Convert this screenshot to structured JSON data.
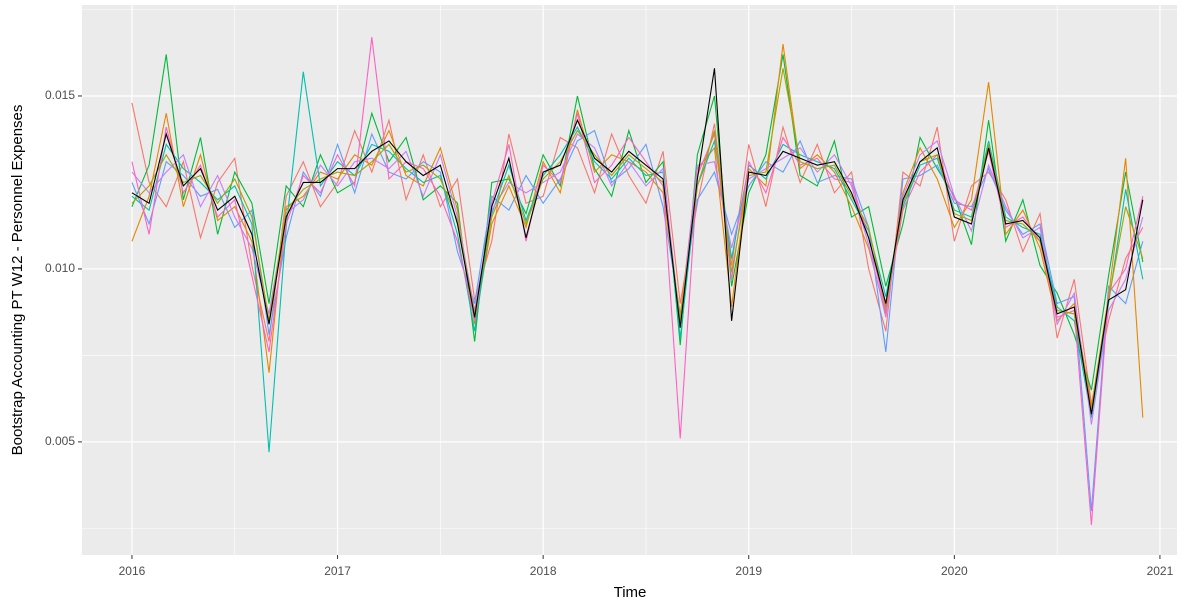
{
  "chart_data": {
    "type": "line",
    "xlabel": "Time",
    "ylabel": "Bootstrap Accounting PT W12 - Personnel Expenses",
    "x": [
      2016,
      2016.0833,
      2016.1667,
      2016.25,
      2016.3333,
      2016.4167,
      2016.5,
      2016.5833,
      2016.6667,
      2016.75,
      2016.8333,
      2016.9167,
      2017,
      2017.0833,
      2017.1667,
      2017.25,
      2017.3333,
      2017.4167,
      2017.5,
      2017.5833,
      2017.6667,
      2017.75,
      2017.8333,
      2017.9167,
      2018,
      2018.0833,
      2018.1667,
      2018.25,
      2018.3333,
      2018.4167,
      2018.5,
      2018.5833,
      2018.6667,
      2018.75,
      2018.8333,
      2018.9167,
      2019,
      2019.0833,
      2019.1667,
      2019.25,
      2019.3333,
      2019.4167,
      2019.5,
      2019.5833,
      2019.6667,
      2019.75,
      2019.8333,
      2019.9167,
      2020,
      2020.0833,
      2020.1667,
      2020.25,
      2020.3333,
      2020.4167,
      2020.5,
      2020.5833,
      2020.6667,
      2020.75,
      2020.8333,
      2020.9167
    ],
    "series": [
      {
        "color": "#F8766D",
        "values": [
          0.0148,
          0.0125,
          0.0118,
          0.0131,
          0.0109,
          0.0125,
          0.0132,
          0.0101,
          0.0079,
          0.0121,
          0.0131,
          0.0118,
          0.0125,
          0.014,
          0.0128,
          0.0143,
          0.012,
          0.0133,
          0.0118,
          0.0126,
          0.0091,
          0.0108,
          0.0139,
          0.0119,
          0.0121,
          0.0138,
          0.0135,
          0.0122,
          0.0139,
          0.0127,
          0.0119,
          0.0134,
          0.009,
          0.0119,
          0.0142,
          0.0101,
          0.0136,
          0.0118,
          0.0141,
          0.0125,
          0.0136,
          0.0122,
          0.0128,
          0.01,
          0.0082,
          0.0128,
          0.0124,
          0.0141,
          0.0108,
          0.0124,
          0.0128,
          0.012,
          0.0105,
          0.0116,
          0.008,
          0.0097,
          0.0061,
          0.0085,
          0.0103,
          0.0112
        ]
      },
      {
        "color": "#00BA38",
        "values": [
          0.0118,
          0.013,
          0.0162,
          0.012,
          0.0138,
          0.011,
          0.0128,
          0.0119,
          0.009,
          0.0124,
          0.0118,
          0.0133,
          0.0122,
          0.0125,
          0.0145,
          0.0131,
          0.0138,
          0.012,
          0.0124,
          0.0119,
          0.0079,
          0.0125,
          0.0126,
          0.0116,
          0.0133,
          0.0124,
          0.015,
          0.0129,
          0.0121,
          0.014,
          0.0125,
          0.0131,
          0.0078,
          0.0133,
          0.015,
          0.0095,
          0.0122,
          0.0133,
          0.0162,
          0.0127,
          0.0124,
          0.0137,
          0.0115,
          0.0118,
          0.0095,
          0.0113,
          0.0138,
          0.0129,
          0.0121,
          0.0107,
          0.0143,
          0.0108,
          0.012,
          0.0101,
          0.0093,
          0.0081,
          0.0065,
          0.0098,
          0.0128,
          0.0102
        ]
      },
      {
        "color": "#619CFF",
        "values": [
          0.0125,
          0.0113,
          0.0131,
          0.0127,
          0.0121,
          0.0123,
          0.0112,
          0.0117,
          0.0081,
          0.0109,
          0.0128,
          0.0121,
          0.0136,
          0.0122,
          0.0139,
          0.0128,
          0.0126,
          0.0131,
          0.0128,
          0.0105,
          0.009,
          0.0121,
          0.0117,
          0.0127,
          0.0119,
          0.0126,
          0.0137,
          0.014,
          0.0125,
          0.0129,
          0.0136,
          0.0118,
          0.0087,
          0.012,
          0.0128,
          0.011,
          0.0124,
          0.0131,
          0.0128,
          0.0137,
          0.0125,
          0.0127,
          0.0126,
          0.0112,
          0.0076,
          0.0126,
          0.0127,
          0.013,
          0.0119,
          0.0118,
          0.0129,
          0.0117,
          0.011,
          0.0113,
          0.009,
          0.0092,
          0.003,
          0.0095,
          0.009,
          0.0108
        ]
      },
      {
        "color": "#E58700",
        "values": [
          0.0108,
          0.0121,
          0.0145,
          0.0118,
          0.0133,
          0.0114,
          0.0118,
          0.0108,
          0.007,
          0.0118,
          0.0121,
          0.0128,
          0.0126,
          0.0133,
          0.013,
          0.014,
          0.0127,
          0.0124,
          0.0135,
          0.0117,
          0.0084,
          0.0113,
          0.0124,
          0.0112,
          0.0131,
          0.0122,
          0.0146,
          0.0128,
          0.0133,
          0.0131,
          0.0128,
          0.0122,
          0.0086,
          0.0129,
          0.0135,
          0.0089,
          0.0129,
          0.0124,
          0.0165,
          0.0129,
          0.0133,
          0.0128,
          0.0118,
          0.0106,
          0.0087,
          0.0122,
          0.0135,
          0.0126,
          0.0112,
          0.012,
          0.0154,
          0.011,
          0.0117,
          0.0106,
          0.0085,
          0.009,
          0.006,
          0.0092,
          0.0132,
          0.0057
        ]
      },
      {
        "color": "#00C0AF",
        "values": [
          0.0121,
          0.0117,
          0.0136,
          0.0129,
          0.0125,
          0.012,
          0.0124,
          0.0113,
          0.0047,
          0.0112,
          0.0157,
          0.0124,
          0.0131,
          0.0127,
          0.0136,
          0.0134,
          0.0129,
          0.0125,
          0.0127,
          0.011,
          0.0082,
          0.0116,
          0.013,
          0.0114,
          0.0127,
          0.0133,
          0.0141,
          0.0131,
          0.0126,
          0.0132,
          0.0127,
          0.0128,
          0.008,
          0.0124,
          0.0137,
          0.0103,
          0.013,
          0.0126,
          0.0136,
          0.0133,
          0.0131,
          0.0129,
          0.012,
          0.0111,
          0.0092,
          0.0118,
          0.013,
          0.0132,
          0.0117,
          0.0115,
          0.0137,
          0.0115,
          0.0112,
          0.011,
          0.0089,
          0.0085,
          0.0057,
          0.009,
          0.0123,
          0.0097
        ]
      },
      {
        "color": "#C77CFF",
        "values": [
          0.0128,
          0.0122,
          0.0128,
          0.0133,
          0.0118,
          0.0127,
          0.0115,
          0.0106,
          0.0087,
          0.0116,
          0.012,
          0.013,
          0.0124,
          0.0131,
          0.0132,
          0.0129,
          0.0134,
          0.0121,
          0.0133,
          0.0115,
          0.0088,
          0.0117,
          0.0125,
          0.0122,
          0.0125,
          0.0128,
          0.0139,
          0.0135,
          0.0124,
          0.0131,
          0.0124,
          0.0129,
          0.0084,
          0.013,
          0.0131,
          0.0106,
          0.0126,
          0.0129,
          0.0132,
          0.0135,
          0.0128,
          0.0133,
          0.0124,
          0.0107,
          0.0086,
          0.0121,
          0.0133,
          0.0137,
          0.0121,
          0.0111,
          0.013,
          0.0118,
          0.0109,
          0.0112,
          0.0084,
          0.0093,
          0.0055,
          0.0088,
          0.0097,
          0.0115
        ]
      },
      {
        "color": "#FF61C3",
        "values": [
          0.0131,
          0.011,
          0.0141,
          0.0122,
          0.013,
          0.0115,
          0.012,
          0.0098,
          0.0076,
          0.0113,
          0.0127,
          0.0122,
          0.0133,
          0.0124,
          0.0167,
          0.0126,
          0.0131,
          0.0129,
          0.0121,
          0.0108,
          0.0085,
          0.0119,
          0.0136,
          0.0108,
          0.013,
          0.0125,
          0.0145,
          0.0125,
          0.013,
          0.0138,
          0.0131,
          0.0124,
          0.0051,
          0.0127,
          0.0139,
          0.0097,
          0.0131,
          0.0122,
          0.0138,
          0.013,
          0.0132,
          0.0126,
          0.0125,
          0.0109,
          0.0088,
          0.0117,
          0.0128,
          0.0133,
          0.012,
          0.0117,
          0.0134,
          0.0112,
          0.0115,
          0.0108,
          0.0086,
          0.0088,
          0.0026,
          0.0093,
          0.01,
          0.0121
        ]
      },
      {
        "color": "#A3A500",
        "values": [
          0.0119,
          0.0124,
          0.0133,
          0.0125,
          0.0127,
          0.0119,
          0.0126,
          0.0115,
          0.0085,
          0.0117,
          0.0123,
          0.0126,
          0.0128,
          0.0127,
          0.0131,
          0.0136,
          0.0128,
          0.013,
          0.0126,
          0.0114,
          0.0087,
          0.0115,
          0.0127,
          0.0113,
          0.0126,
          0.0131,
          0.014,
          0.0133,
          0.0127,
          0.0133,
          0.0129,
          0.0125,
          0.0085,
          0.0124,
          0.014,
          0.0099,
          0.0127,
          0.0128,
          0.0158,
          0.0131,
          0.0129,
          0.013,
          0.0121,
          0.0112,
          0.0089,
          0.0119,
          0.0131,
          0.0133,
          0.0116,
          0.0114,
          0.0136,
          0.0114,
          0.0113,
          0.0108,
          0.0088,
          0.0087,
          0.0059,
          0.0091,
          0.0118,
          0.0103
        ]
      },
      {
        "color": "#000000",
        "values": [
          0.0122,
          0.0119,
          0.0139,
          0.0124,
          0.0129,
          0.0117,
          0.0121,
          0.011,
          0.0084,
          0.0115,
          0.0125,
          0.0125,
          0.0129,
          0.0129,
          0.0134,
          0.0137,
          0.0131,
          0.0127,
          0.013,
          0.0113,
          0.0086,
          0.0118,
          0.0132,
          0.0109,
          0.0128,
          0.013,
          0.0143,
          0.0132,
          0.0128,
          0.0134,
          0.013,
          0.0126,
          0.0083,
          0.0126,
          0.0158,
          0.0085,
          0.0128,
          0.0127,
          0.0134,
          0.0132,
          0.013,
          0.0131,
          0.0122,
          0.0109,
          0.009,
          0.012,
          0.0131,
          0.0135,
          0.0115,
          0.0113,
          0.0135,
          0.0113,
          0.0114,
          0.0109,
          0.0087,
          0.0089,
          0.0058,
          0.0091,
          0.0094,
          0.012
        ]
      }
    ],
    "xlim": [
      2015.757,
      2021.083
    ],
    "ylim": [
      0.00173,
      0.01763
    ],
    "xticks": [
      2016,
      2017,
      2018,
      2019,
      2020,
      2021
    ],
    "yticks": [
      {
        "value": 0.005,
        "label": "0.005"
      },
      {
        "value": 0.01,
        "label": "0.010"
      },
      {
        "value": 0.015,
        "label": "0.015"
      }
    ],
    "minor_xticks": [
      2016.5,
      2017.5,
      2018.5,
      2019.5,
      2020.5
    ],
    "minor_yticks": [
      0.0025,
      0.0075,
      0.0125,
      0.0175
    ],
    "grid": true,
    "panel_color": "#EBEBEB"
  }
}
